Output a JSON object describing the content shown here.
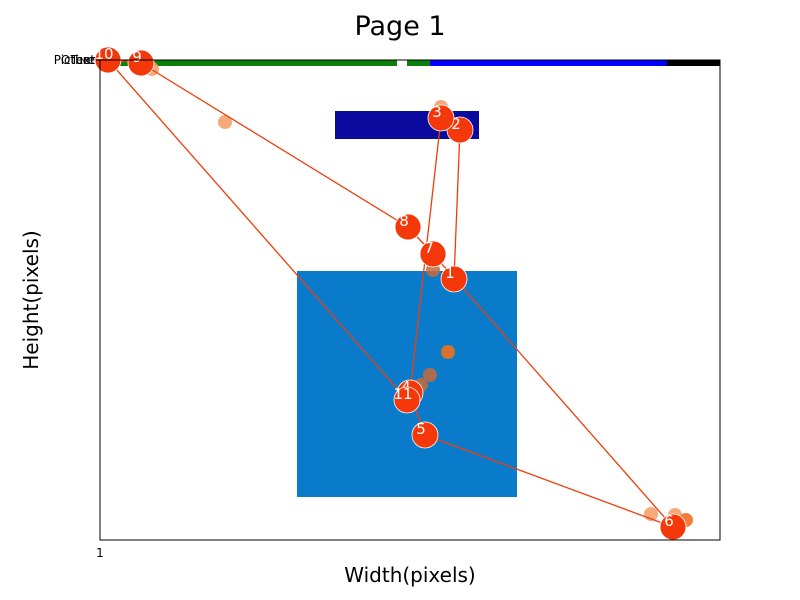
{
  "chart_data": {
    "type": "scatter",
    "title": "Page 1",
    "xlabel": "Width(pixels)",
    "ylabel": "Height(pixels)",
    "x_tick_label": "1",
    "y_tick_labels": [
      "Picture",
      "Other",
      "Text"
    ],
    "xlim": [
      0,
      620
    ],
    "ylim": [
      0,
      480
    ],
    "grid": false,
    "regions": [
      {
        "name": "legend-bar-green-left",
        "x0": 0,
        "y0": 0,
        "x1": 297,
        "y1": 6,
        "color": "#0a7f0a"
      },
      {
        "name": "legend-bar-green-right",
        "x0": 307,
        "y0": 0,
        "x1": 330,
        "y1": 6,
        "color": "#0a7f0a"
      },
      {
        "name": "legend-bar-blue",
        "x0": 330,
        "y0": 0,
        "x1": 567,
        "y1": 6,
        "color": "#0000ff"
      },
      {
        "name": "legend-bar-black",
        "x0": 567,
        "y0": 0,
        "x1": 620,
        "y1": 6,
        "color": "#000000"
      },
      {
        "name": "dark-blue-region",
        "x0": 235,
        "y0": 51,
        "x1": 379,
        "y1": 79,
        "color": "#0a0a9f"
      },
      {
        "name": "light-blue-region",
        "x0": 197,
        "y0": 211,
        "x1": 417,
        "y1": 437,
        "color": "#0a7bca"
      }
    ],
    "raw_points": [
      {
        "x": 8,
        "y": 0,
        "color": "#f5a06a",
        "opacity": 0.9
      },
      {
        "x": 52,
        "y": 9,
        "color": "#f5a06a",
        "opacity": 0.9
      },
      {
        "x": 125,
        "y": 62,
        "color": "#f5a06a",
        "opacity": 0.9
      },
      {
        "x": 341,
        "y": 47,
        "color": "#f5a06a",
        "opacity": 0.9
      },
      {
        "x": 348,
        "y": 292,
        "color": "#f07020",
        "opacity": 0.9
      },
      {
        "x": 330,
        "y": 315,
        "color": "#c86a3a",
        "opacity": 0.85
      },
      {
        "x": 321,
        "y": 325,
        "color": "#c86a3a",
        "opacity": 0.85
      },
      {
        "x": 333,
        "y": 210,
        "color": "#c86a3a",
        "opacity": 0.85
      },
      {
        "x": 551,
        "y": 454,
        "color": "#f5a06a",
        "opacity": 0.9
      },
      {
        "x": 575,
        "y": 455,
        "color": "#f5a06a",
        "opacity": 0.9
      },
      {
        "x": 586,
        "y": 460,
        "color": "#f07020",
        "opacity": 0.9
      }
    ],
    "fixation_order": [
      1,
      2,
      3,
      4,
      5,
      6,
      7,
      8,
      9,
      10,
      11
    ],
    "fixations": [
      {
        "label": "1",
        "x": 354,
        "y": 219
      },
      {
        "label": "2",
        "x": 360,
        "y": 70
      },
      {
        "label": "3",
        "x": 341,
        "y": 58
      },
      {
        "label": "4",
        "x": 310,
        "y": 333
      },
      {
        "label": "5",
        "x": 325,
        "y": 375
      },
      {
        "label": "6",
        "x": 573,
        "y": 467
      },
      {
        "label": "7",
        "x": 333,
        "y": 194
      },
      {
        "label": "8",
        "x": 308,
        "y": 167
      },
      {
        "label": "9",
        "x": 41,
        "y": 3
      },
      {
        "label": "10",
        "x": 8,
        "y": 0
      },
      {
        "label": "11",
        "x": 307,
        "y": 340
      }
    ],
    "path_color": "#f03c0a",
    "fixation_color": "#f5380a"
  }
}
